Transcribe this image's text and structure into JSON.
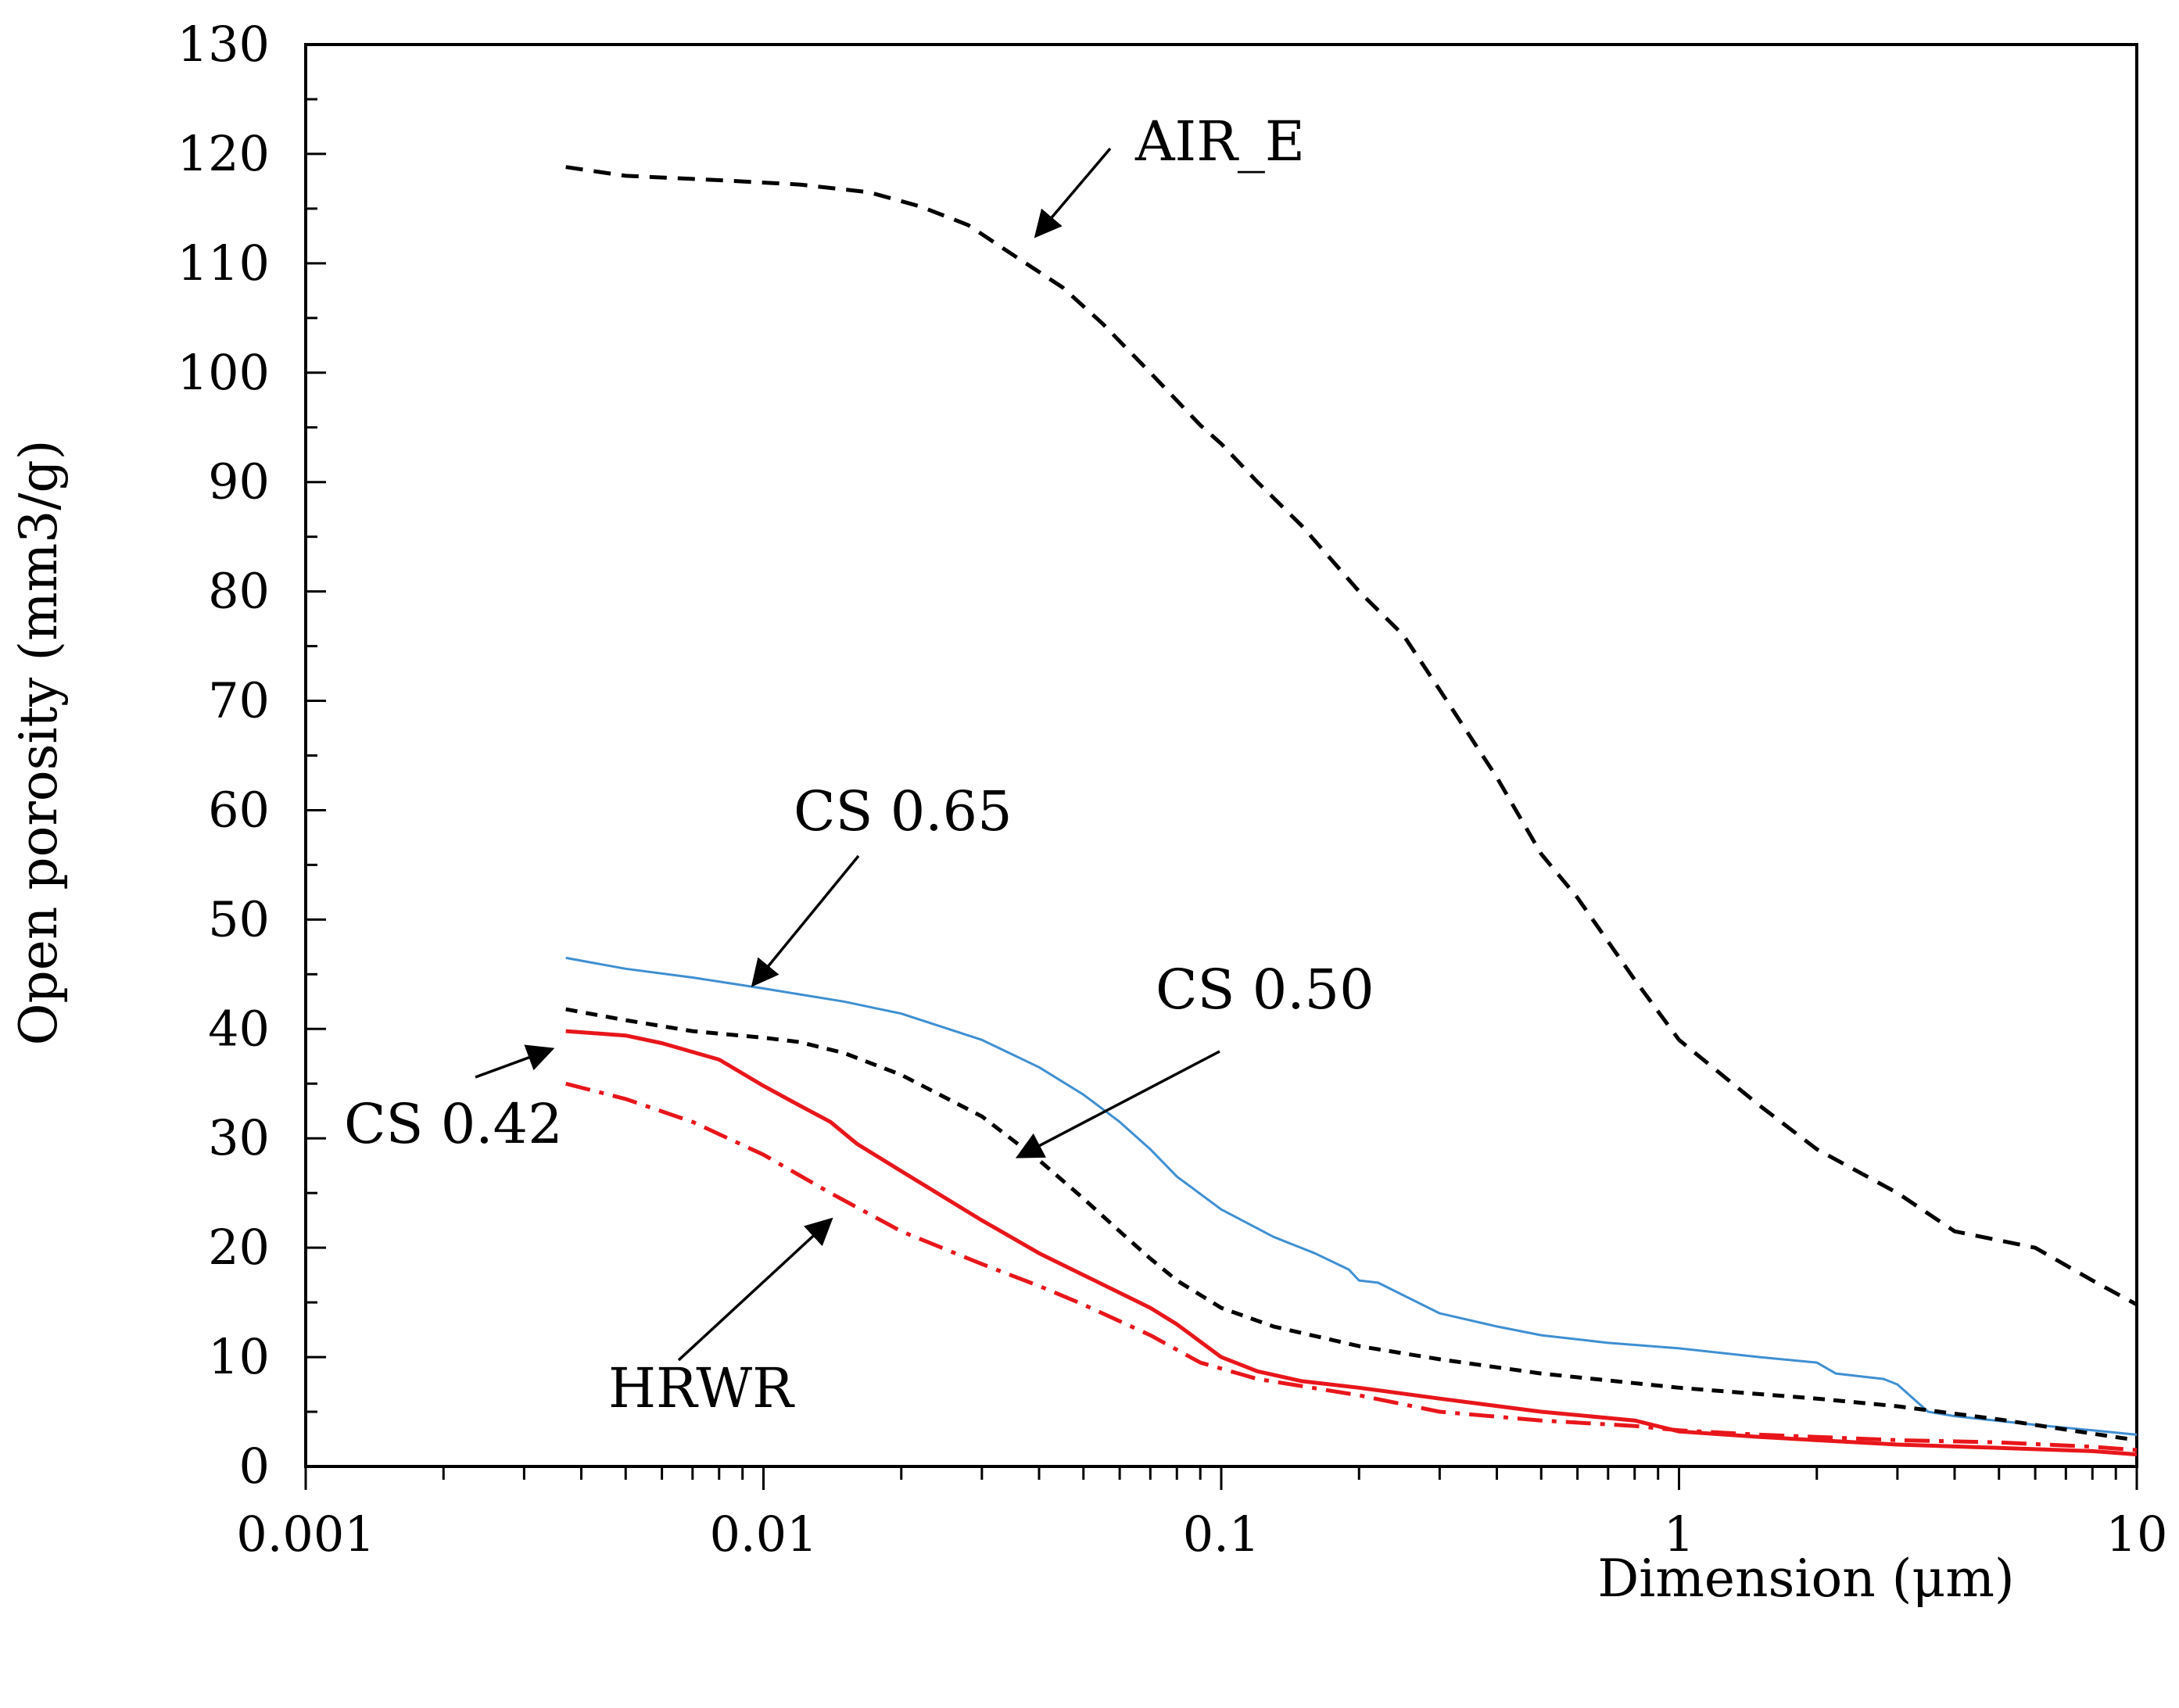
{
  "chart_data": {
    "type": "line",
    "title": "",
    "xlabel": "Dimension (μm)",
    "ylabel": "Open porosity (mm3/g)",
    "xscale": "log",
    "xlim": [
      0.001,
      10
    ],
    "ylim": [
      0,
      130
    ],
    "grid": false,
    "x_ticks": [
      {
        "value": 0.001,
        "label": "0.001"
      },
      {
        "value": 0.01,
        "label": "0.01"
      },
      {
        "value": 0.1,
        "label": "0.1"
      },
      {
        "value": 1,
        "label": "1"
      },
      {
        "value": 10,
        "label": "10"
      }
    ],
    "y_ticks": [
      {
        "value": 0,
        "label": "0"
      },
      {
        "value": 10,
        "label": "10"
      },
      {
        "value": 20,
        "label": "20"
      },
      {
        "value": 30,
        "label": "30"
      },
      {
        "value": 40,
        "label": "40"
      },
      {
        "value": 50,
        "label": "50"
      },
      {
        "value": 60,
        "label": "60"
      },
      {
        "value": 70,
        "label": "70"
      },
      {
        "value": 80,
        "label": "80"
      },
      {
        "value": 90,
        "label": "90"
      },
      {
        "value": 100,
        "label": "100"
      },
      {
        "value": 110,
        "label": "110"
      },
      {
        "value": 120,
        "label": "120"
      },
      {
        "value": 130,
        "label": "130"
      }
    ],
    "series": [
      {
        "name": "AIR_E",
        "color": "#000000",
        "dash": "long-dash",
        "points": [
          [
            0.0037,
            118.8
          ],
          [
            0.005,
            118
          ],
          [
            0.008,
            117.6
          ],
          [
            0.012,
            117.2
          ],
          [
            0.017,
            116.5
          ],
          [
            0.022,
            115.2
          ],
          [
            0.028,
            113.5
          ],
          [
            0.035,
            110.8
          ],
          [
            0.045,
            107.8
          ],
          [
            0.055,
            104.5
          ],
          [
            0.07,
            100
          ],
          [
            0.09,
            95.2
          ],
          [
            0.1,
            93.5
          ],
          [
            0.12,
            90
          ],
          [
            0.15,
            86
          ],
          [
            0.2,
            80
          ],
          [
            0.25,
            76
          ],
          [
            0.3,
            71
          ],
          [
            0.4,
            63
          ],
          [
            0.5,
            56
          ],
          [
            0.6,
            52
          ],
          [
            0.8,
            44.5
          ],
          [
            1,
            39
          ],
          [
            1.5,
            33
          ],
          [
            2,
            29
          ],
          [
            3,
            25
          ],
          [
            4,
            21.5
          ],
          [
            6,
            20
          ],
          [
            8,
            17
          ],
          [
            10,
            14.8
          ]
        ]
      },
      {
        "name": "CS 0.65",
        "color": "#3f8fd2",
        "dash": "solid",
        "points": [
          [
            0.0037,
            46.5
          ],
          [
            0.005,
            45.5
          ],
          [
            0.007,
            44.7
          ],
          [
            0.01,
            43.7
          ],
          [
            0.015,
            42.5
          ],
          [
            0.02,
            41.4
          ],
          [
            0.03,
            39
          ],
          [
            0.04,
            36.5
          ],
          [
            0.05,
            34
          ],
          [
            0.06,
            31.5
          ],
          [
            0.07,
            29
          ],
          [
            0.08,
            26.5
          ],
          [
            0.1,
            23.5
          ],
          [
            0.13,
            21
          ],
          [
            0.16,
            19.5
          ],
          [
            0.19,
            18
          ],
          [
            0.2,
            17
          ],
          [
            0.22,
            16.8
          ],
          [
            0.3,
            14
          ],
          [
            0.4,
            12.8
          ],
          [
            0.5,
            12
          ],
          [
            0.7,
            11.3
          ],
          [
            1,
            10.8
          ],
          [
            1.5,
            10
          ],
          [
            2,
            9.5
          ],
          [
            2.2,
            8.5
          ],
          [
            2.8,
            8
          ],
          [
            3,
            7.5
          ],
          [
            3.5,
            5
          ],
          [
            4,
            4.6
          ],
          [
            6,
            3.8
          ],
          [
            8,
            3.3
          ],
          [
            10,
            2.9
          ]
        ]
      },
      {
        "name": "CS 0.50",
        "color": "#000000",
        "dash": "short-dash",
        "points": [
          [
            0.0037,
            41.8
          ],
          [
            0.005,
            40.8
          ],
          [
            0.007,
            39.8
          ],
          [
            0.01,
            39.2
          ],
          [
            0.012,
            38.8
          ],
          [
            0.015,
            37.8
          ],
          [
            0.02,
            35.8
          ],
          [
            0.03,
            32
          ],
          [
            0.04,
            28
          ],
          [
            0.05,
            24.5
          ],
          [
            0.06,
            21.5
          ],
          [
            0.07,
            19
          ],
          [
            0.08,
            17
          ],
          [
            0.1,
            14.5
          ],
          [
            0.13,
            12.8
          ],
          [
            0.2,
            11
          ],
          [
            0.3,
            9.8
          ],
          [
            0.5,
            8.5
          ],
          [
            1,
            7.2
          ],
          [
            2,
            6.2
          ],
          [
            3,
            5.5
          ],
          [
            5,
            4.3
          ],
          [
            8,
            3
          ],
          [
            10,
            2.4
          ]
        ]
      },
      {
        "name": "CS 0.42",
        "color": "#e8161b",
        "dash": "solid",
        "points": [
          [
            0.0037,
            39.8
          ],
          [
            0.005,
            39.4
          ],
          [
            0.006,
            38.7
          ],
          [
            0.008,
            37.2
          ],
          [
            0.01,
            34.8
          ],
          [
            0.012,
            33
          ],
          [
            0.014,
            31.5
          ],
          [
            0.016,
            29.5
          ],
          [
            0.02,
            27
          ],
          [
            0.03,
            22.5
          ],
          [
            0.04,
            19.5
          ],
          [
            0.05,
            17.5
          ],
          [
            0.07,
            14.5
          ],
          [
            0.08,
            13
          ],
          [
            0.1,
            10
          ],
          [
            0.12,
            8.7
          ],
          [
            0.15,
            7.8
          ],
          [
            0.2,
            7.2
          ],
          [
            0.3,
            6.2
          ],
          [
            0.5,
            5
          ],
          [
            0.8,
            4.2
          ],
          [
            1,
            3.2
          ],
          [
            1.5,
            2.7
          ],
          [
            2,
            2.4
          ],
          [
            3,
            2
          ],
          [
            5,
            1.7
          ],
          [
            8,
            1.4
          ],
          [
            10,
            1.1
          ]
        ]
      },
      {
        "name": "HRWR",
        "color": "#e8161b",
        "dash": "dash-dot",
        "points": [
          [
            0.0037,
            35
          ],
          [
            0.005,
            33.6
          ],
          [
            0.007,
            31.5
          ],
          [
            0.01,
            28.5
          ],
          [
            0.014,
            25
          ],
          [
            0.02,
            21.5
          ],
          [
            0.03,
            18.5
          ],
          [
            0.04,
            16.5
          ],
          [
            0.05,
            14.8
          ],
          [
            0.07,
            12
          ],
          [
            0.09,
            9.5
          ],
          [
            0.12,
            8
          ],
          [
            0.2,
            6.5
          ],
          [
            0.3,
            5
          ],
          [
            0.5,
            4.2
          ],
          [
            0.8,
            3.7
          ],
          [
            1,
            3.3
          ],
          [
            1.5,
            2.9
          ],
          [
            2,
            2.7
          ],
          [
            3,
            2.4
          ],
          [
            5,
            2.2
          ],
          [
            8,
            1.8
          ],
          [
            10,
            1.5
          ]
        ]
      }
    ],
    "annotations": [
      {
        "text": "AIR_E",
        "series": "AIR_E"
      },
      {
        "text": "CS 0.65",
        "series": "CS 0.65"
      },
      {
        "text": "CS 0.50",
        "series": "CS 0.50"
      },
      {
        "text": "CS 0.42",
        "series": "CS 0.42"
      },
      {
        "text": "HRWR",
        "series": "HRWR"
      }
    ]
  }
}
